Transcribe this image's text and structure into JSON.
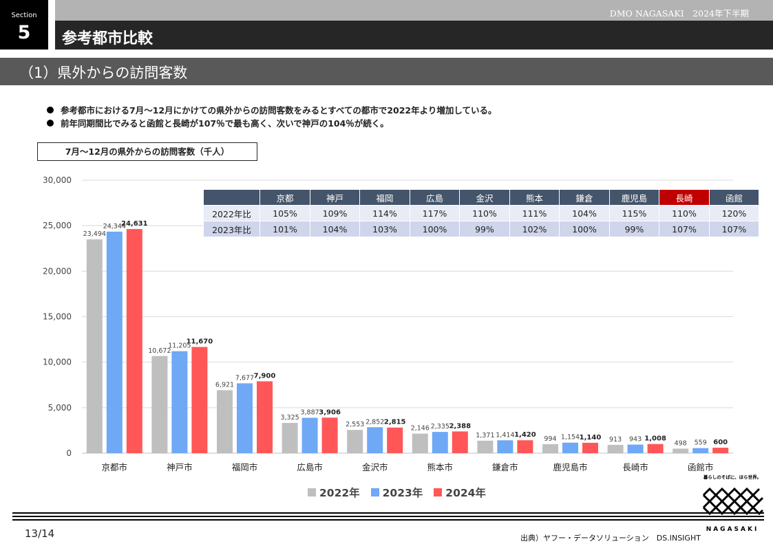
{
  "header": {
    "section_label": "Section",
    "section_number": "5",
    "org_period": "DMO NAGASAKI　2024年下半期",
    "title": "参考都市比較",
    "subtitle": "（1）県外からの訪問客数"
  },
  "bullets": [
    "参考都市における7月～12月にかけての県外からの訪問客数をみるとすべての都市で2022年より増加している。",
    "前年同期間比でみると函館と長崎が107％で最も高く、次いで神戸の104％が続く。"
  ],
  "chart_title": "7月～12月の県外からの訪問客数（千人）",
  "ratio_table": {
    "columns": [
      "京都",
      "神戸",
      "福岡",
      "広島",
      "金沢",
      "熊本",
      "鎌倉",
      "鹿児島",
      "長崎",
      "函館"
    ],
    "highlight_column": "長崎",
    "rows": [
      {
        "label": "2022年比",
        "values": [
          "105%",
          "109%",
          "114%",
          "117%",
          "110%",
          "111%",
          "104%",
          "115%",
          "110%",
          "120%"
        ]
      },
      {
        "label": "2023年比",
        "values": [
          "101%",
          "104%",
          "103%",
          "100%",
          "99%",
          "102%",
          "100%",
          "99%",
          "107%",
          "107%"
        ]
      }
    ],
    "header_color": "#44546a",
    "highlight_color": "#c00000"
  },
  "chart_data": {
    "type": "bar",
    "categories": [
      "京都市",
      "神戸市",
      "福岡市",
      "広島市",
      "金沢市",
      "熊本市",
      "鎌倉市",
      "鹿児島市",
      "長崎市",
      "函館市"
    ],
    "series": [
      {
        "name": "2022年",
        "color": "#bfbfbf",
        "values": [
          23494,
          10672,
          6921,
          3325,
          2553,
          2146,
          1371,
          994,
          913,
          498
        ],
        "labels": [
          "23,494",
          "10,672",
          "6,921",
          "3,325",
          "2,553",
          "2,146",
          "1,371",
          "994",
          "913",
          "498"
        ]
      },
      {
        "name": "2023年",
        "color": "#6fa8f5",
        "values": [
          24344,
          11205,
          7677,
          3887,
          2852,
          2335,
          1414,
          1154,
          943,
          559
        ],
        "labels": [
          "24,344",
          "11,205",
          "7,677",
          "3,887",
          "2,852",
          "2,335",
          "1,414",
          "1,154",
          "943",
          "559"
        ]
      },
      {
        "name": "2024年",
        "color": "#ff5757",
        "values": [
          24631,
          11670,
          7900,
          3906,
          2815,
          2388,
          1420,
          1140,
          1008,
          600
        ],
        "labels": [
          "24,631",
          "11,670",
          "7,900",
          "3,906",
          "2,815",
          "2,388",
          "1,420",
          "1,140",
          "1,008",
          "600"
        ]
      }
    ],
    "yticks": [
      "0",
      "5,000",
      "10,000",
      "15,000",
      "20,000",
      "25,000",
      "30,000"
    ],
    "ylim": [
      0,
      30000
    ],
    "grid": true,
    "legend": "bottom"
  },
  "footer": {
    "page": "13/14",
    "source": "出典）ヤフー・データソリューション　DS.INSIGHT",
    "logo_tagline": "暮らしのそばに、ほら世界。",
    "logo_word": "NAGASAKI"
  }
}
